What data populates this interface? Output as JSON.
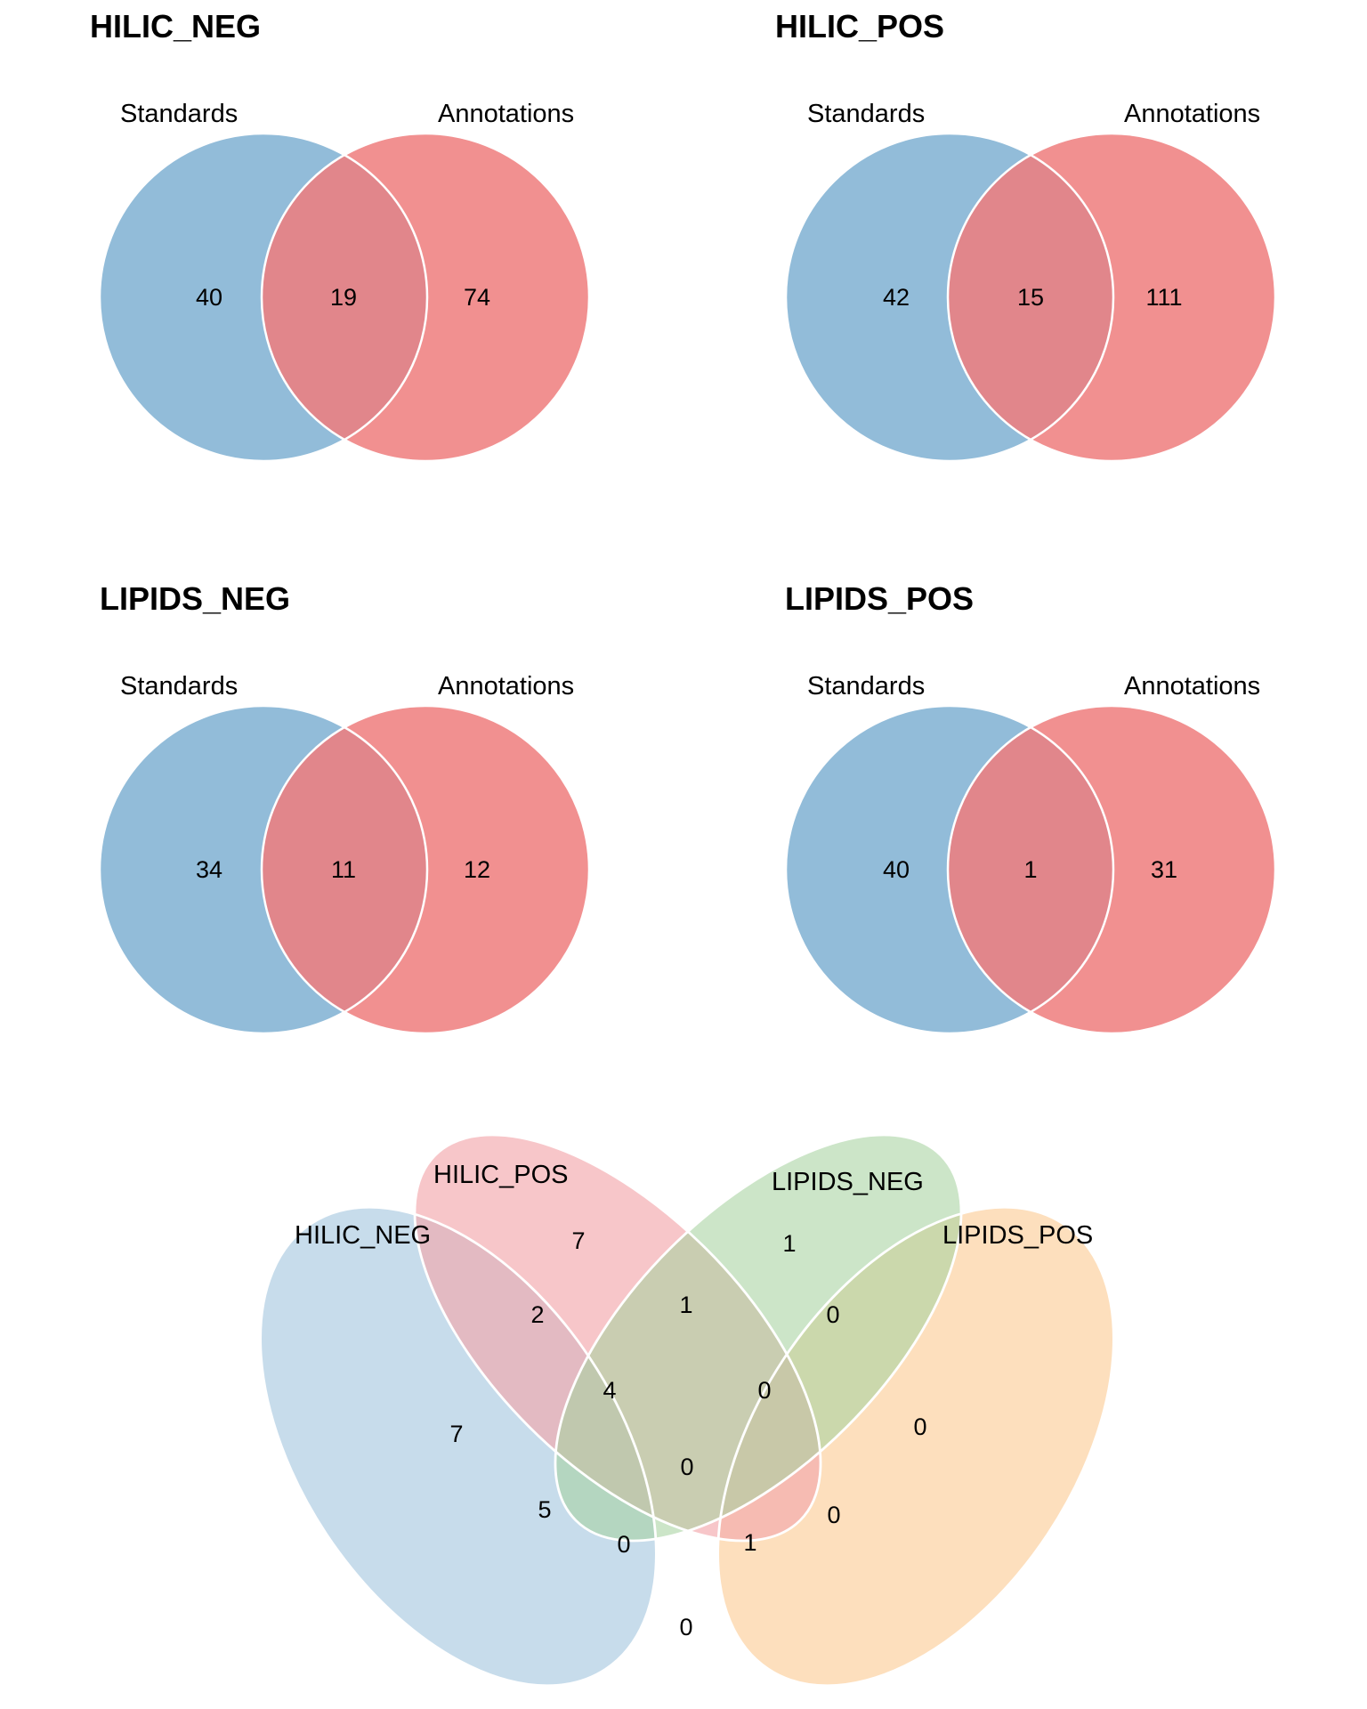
{
  "colors": {
    "standards": "#7fb0d2",
    "annotations": "#ef7c7c",
    "stroke": "#ffffff",
    "hilic_neg": "#9fc3dc",
    "hilic_pos": "#f2a8ac",
    "lipids_neg": "#a7d3a1",
    "lipids_pos": "#fcc88e"
  },
  "pairs": [
    {
      "title": "HILIC_NEG",
      "left_label": "Standards",
      "right_label": "Annotations",
      "left_only": "40",
      "overlap": "19",
      "right_only": "74"
    },
    {
      "title": "HILIC_POS",
      "left_label": "Standards",
      "right_label": "Annotations",
      "left_only": "42",
      "overlap": "15",
      "right_only": "111"
    },
    {
      "title": "LIPIDS_NEG",
      "left_label": "Standards",
      "right_label": "Annotations",
      "left_only": "34",
      "overlap": "11",
      "right_only": "12"
    },
    {
      "title": "LIPIDS_POS",
      "left_label": "Standards",
      "right_label": "Annotations",
      "left_only": "40",
      "overlap": "1",
      "right_only": "31"
    }
  ],
  "venn4": {
    "set_labels": {
      "hilic_neg": "HILIC_NEG",
      "hilic_pos": "HILIC_POS",
      "lipids_neg": "LIPIDS_NEG",
      "lipids_pos": "LIPIDS_POS"
    },
    "regions": {
      "A_only": "7",
      "B_only": "7",
      "C_only": "1",
      "D_only": "0",
      "AB": "2",
      "BC": "1",
      "CD": "0",
      "AC": "5",
      "BD": "0",
      "AD": "0",
      "ABC": "4",
      "BCD": "0",
      "ACD": "0",
      "ABD": "1",
      "ABCD": "0"
    }
  }
}
